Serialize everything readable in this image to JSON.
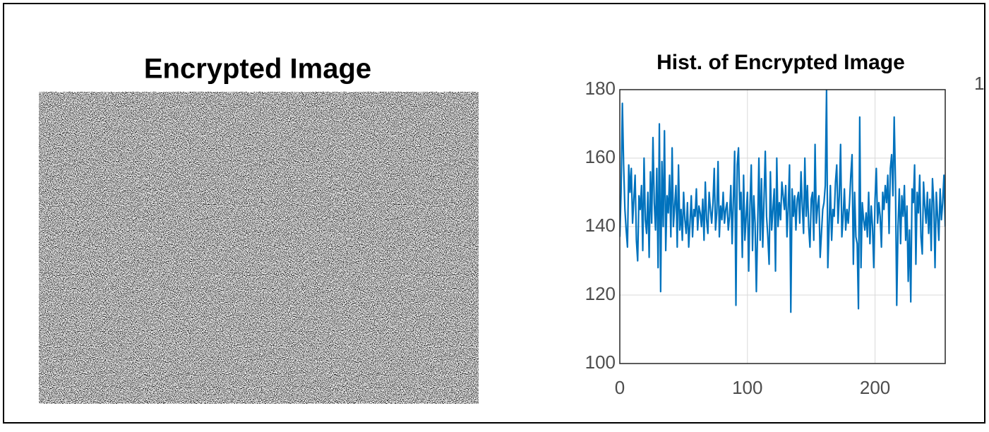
{
  "image_panel": {
    "title": "Encrypted Image"
  },
  "chart_data": {
    "type": "line",
    "title": "Hist. of Encrypted Image",
    "xlim": [
      0,
      255
    ],
    "ylim": [
      100,
      180
    ],
    "xticks": [
      0,
      100,
      200
    ],
    "yticks": [
      100,
      120,
      140,
      160,
      180
    ],
    "grid": true,
    "clipped_label": "1",
    "series": [
      {
        "color": "#0072bd",
        "x": [
          0,
          1,
          2,
          3,
          4,
          5,
          6,
          7,
          8,
          9,
          10,
          11,
          12,
          13,
          14,
          15,
          16,
          17,
          18,
          19,
          20,
          21,
          22,
          23,
          24,
          25,
          26,
          27,
          28,
          29,
          30,
          31,
          32,
          33,
          34,
          35,
          36,
          37,
          38,
          39,
          40,
          41,
          42,
          43,
          44,
          45,
          46,
          47,
          48,
          49,
          50,
          51,
          52,
          53,
          54,
          55,
          56,
          57,
          58,
          59,
          60,
          61,
          62,
          63,
          64,
          65,
          66,
          67,
          68,
          69,
          70,
          71,
          72,
          73,
          74,
          75,
          76,
          77,
          78,
          79,
          80,
          81,
          82,
          83,
          84,
          85,
          86,
          87,
          88,
          89,
          90,
          91,
          92,
          93,
          94,
          95,
          96,
          97,
          98,
          99,
          100,
          101,
          102,
          103,
          104,
          105,
          106,
          107,
          108,
          109,
          110,
          111,
          112,
          113,
          114,
          115,
          116,
          117,
          118,
          119,
          120,
          121,
          122,
          123,
          124,
          125,
          126,
          127,
          128,
          129,
          130,
          131,
          132,
          133,
          134,
          135,
          136,
          137,
          138,
          139,
          140,
          141,
          142,
          143,
          144,
          145,
          146,
          147,
          148,
          149,
          150,
          151,
          152,
          153,
          154,
          155,
          156,
          157,
          158,
          159,
          160,
          161,
          162,
          163,
          164,
          165,
          166,
          167,
          168,
          169,
          170,
          171,
          172,
          173,
          174,
          175,
          176,
          177,
          178,
          179,
          180,
          181,
          182,
          183,
          184,
          185,
          186,
          187,
          188,
          189,
          190,
          191,
          192,
          193,
          194,
          195,
          196,
          197,
          198,
          199,
          200,
          201,
          202,
          203,
          204,
          205,
          206,
          207,
          208,
          209,
          210,
          211,
          212,
          213,
          214,
          215,
          216,
          217,
          218,
          219,
          220,
          221,
          222,
          223,
          224,
          225,
          226,
          227,
          228,
          229,
          230,
          231,
          232,
          233,
          234,
          235,
          236,
          237,
          238,
          239,
          240,
          241,
          242,
          243,
          244,
          245,
          246,
          247,
          248,
          249,
          250,
          251,
          252,
          253,
          254,
          255
        ],
        "values": [
          137,
          150,
          176,
          158,
          145,
          139,
          134,
          158,
          150,
          157,
          141,
          148,
          155,
          136,
          130,
          149,
          145,
          152,
          133,
          160,
          142,
          138,
          150,
          131,
          156,
          141,
          166,
          147,
          139,
          157,
          128,
          170,
          121,
          159,
          140,
          168,
          133,
          149,
          144,
          155,
          137,
          163,
          140,
          146,
          152,
          134,
          158,
          139,
          145,
          136,
          150,
          142,
          138,
          147,
          134,
          141,
          149,
          137,
          145,
          143,
          151,
          139,
          146,
          144,
          140,
          148,
          136,
          153,
          142,
          138,
          150,
          145,
          141,
          147,
          157,
          139,
          144,
          159,
          137,
          146,
          142,
          150,
          141,
          145,
          147,
          139,
          143,
          152,
          135,
          148,
          162,
          117,
          158,
          163,
          145,
          150,
          131,
          155,
          136,
          143,
          150,
          127,
          146,
          158,
          133,
          149,
          141,
          121,
          140,
          160,
          136,
          154,
          134,
          148,
          162,
          143,
          137,
          129,
          156,
          139,
          145,
          151,
          127,
          160,
          140,
          147,
          142,
          153,
          149,
          145,
          152,
          137,
          146,
          158,
          115,
          151,
          143,
          149,
          139,
          148,
          150,
          141,
          156,
          146,
          138,
          160,
          143,
          152,
          140,
          134,
          148,
          150,
          136,
          164,
          141,
          146,
          149,
          131,
          138,
          145,
          147,
          152,
          180,
          128,
          140,
          152,
          136,
          145,
          143,
          153,
          158,
          141,
          149,
          164,
          137,
          143,
          151,
          139,
          145,
          141,
          147,
          155,
          161,
          129,
          150,
          137,
          135,
          116,
          172,
          128,
          147,
          142,
          139,
          144,
          137,
          150,
          135,
          146,
          140,
          128,
          148,
          157,
          141,
          147,
          143,
          134,
          150,
          145,
          152,
          147,
          155,
          138,
          157,
          161,
          149,
          172,
          153,
          117,
          140,
          151,
          135,
          149,
          143,
          152,
          136,
          146,
          124,
          139,
          118,
          151,
          147,
          158,
          129,
          150,
          144,
          155,
          137,
          132,
          153,
          146,
          141,
          150,
          138,
          148,
          133,
          154,
          147,
          128,
          150,
          143,
          136,
          151,
          142,
          147,
          155,
          140
        ]
      }
    ]
  }
}
